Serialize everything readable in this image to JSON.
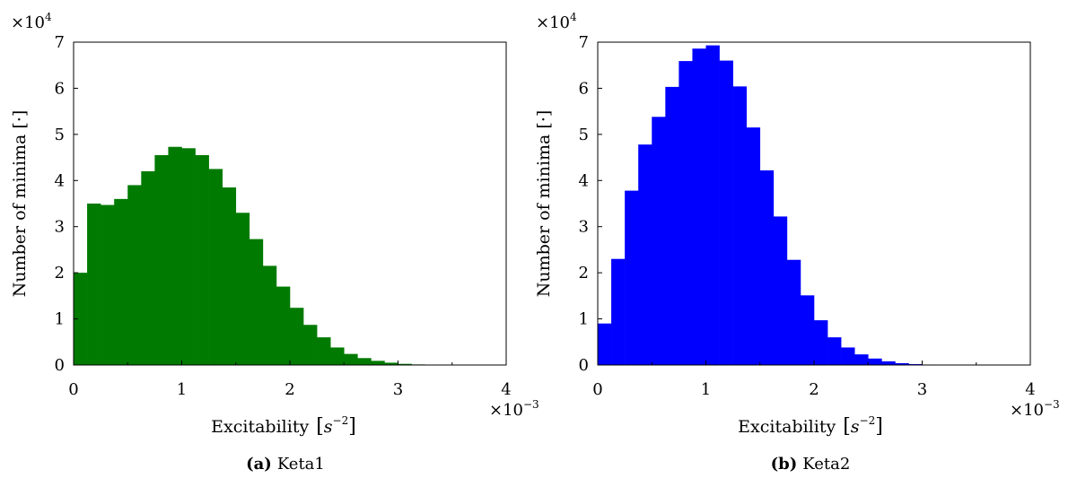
{
  "chart_data": [
    {
      "type": "bar",
      "panel": "a",
      "caption_tag": "(a)",
      "caption_name": "Keta1",
      "color": "#007a00",
      "xlabel": "Excitability",
      "xlabel_math_left": "[",
      "xlabel_math_base": "s",
      "xlabel_math_exp": "−2",
      "xlabel_math_right": "]",
      "ylabel": "Number of minima [·]",
      "xlim": [
        0,
        0.004
      ],
      "ylim": [
        0,
        70000
      ],
      "x_tick_labels": [
        "0",
        "1",
        "2",
        "3",
        "4"
      ],
      "y_tick_labels": [
        "0",
        "1",
        "2",
        "3",
        "4",
        "5",
        "6",
        "7"
      ],
      "x_multiplier_base": "×10",
      "x_multiplier_exp": "−3",
      "y_multiplier_base": "×10",
      "y_multiplier_exp": "4",
      "bin_width": 0.000125,
      "bin_start": 0,
      "values": [
        20000,
        35000,
        34700,
        36000,
        39000,
        42000,
        45500,
        47300,
        47000,
        45500,
        42500,
        38500,
        33000,
        27300,
        21500,
        17000,
        12400,
        8700,
        6000,
        3800,
        2400,
        1500,
        900,
        500,
        250,
        120,
        60,
        30,
        15,
        8,
        4,
        2
      ]
    },
    {
      "type": "bar",
      "panel": "b",
      "caption_tag": "(b)",
      "caption_name": "Keta2",
      "color": "#0000ff",
      "xlabel": "Excitability",
      "xlabel_math_left": "[",
      "xlabel_math_base": "s",
      "xlabel_math_exp": "−2",
      "xlabel_math_right": "]",
      "ylabel": "Number of minima [·]",
      "xlim": [
        0,
        0.004
      ],
      "ylim": [
        0,
        70000
      ],
      "x_tick_labels": [
        "0",
        "1",
        "2",
        "3",
        "4"
      ],
      "y_tick_labels": [
        "0",
        "1",
        "2",
        "3",
        "4",
        "5",
        "6",
        "7"
      ],
      "x_multiplier_base": "×10",
      "x_multiplier_exp": "−3",
      "y_multiplier_base": "×10",
      "y_multiplier_exp": "4",
      "bin_width": 0.000125,
      "bin_start": 0,
      "values": [
        9000,
        23000,
        37800,
        47800,
        53800,
        60300,
        65900,
        68600,
        69300,
        66000,
        60400,
        51500,
        42200,
        32200,
        22800,
        15100,
        9700,
        6000,
        3800,
        2300,
        1400,
        800,
        400,
        200,
        100,
        50,
        25,
        12,
        6,
        3,
        2,
        1
      ]
    }
  ]
}
